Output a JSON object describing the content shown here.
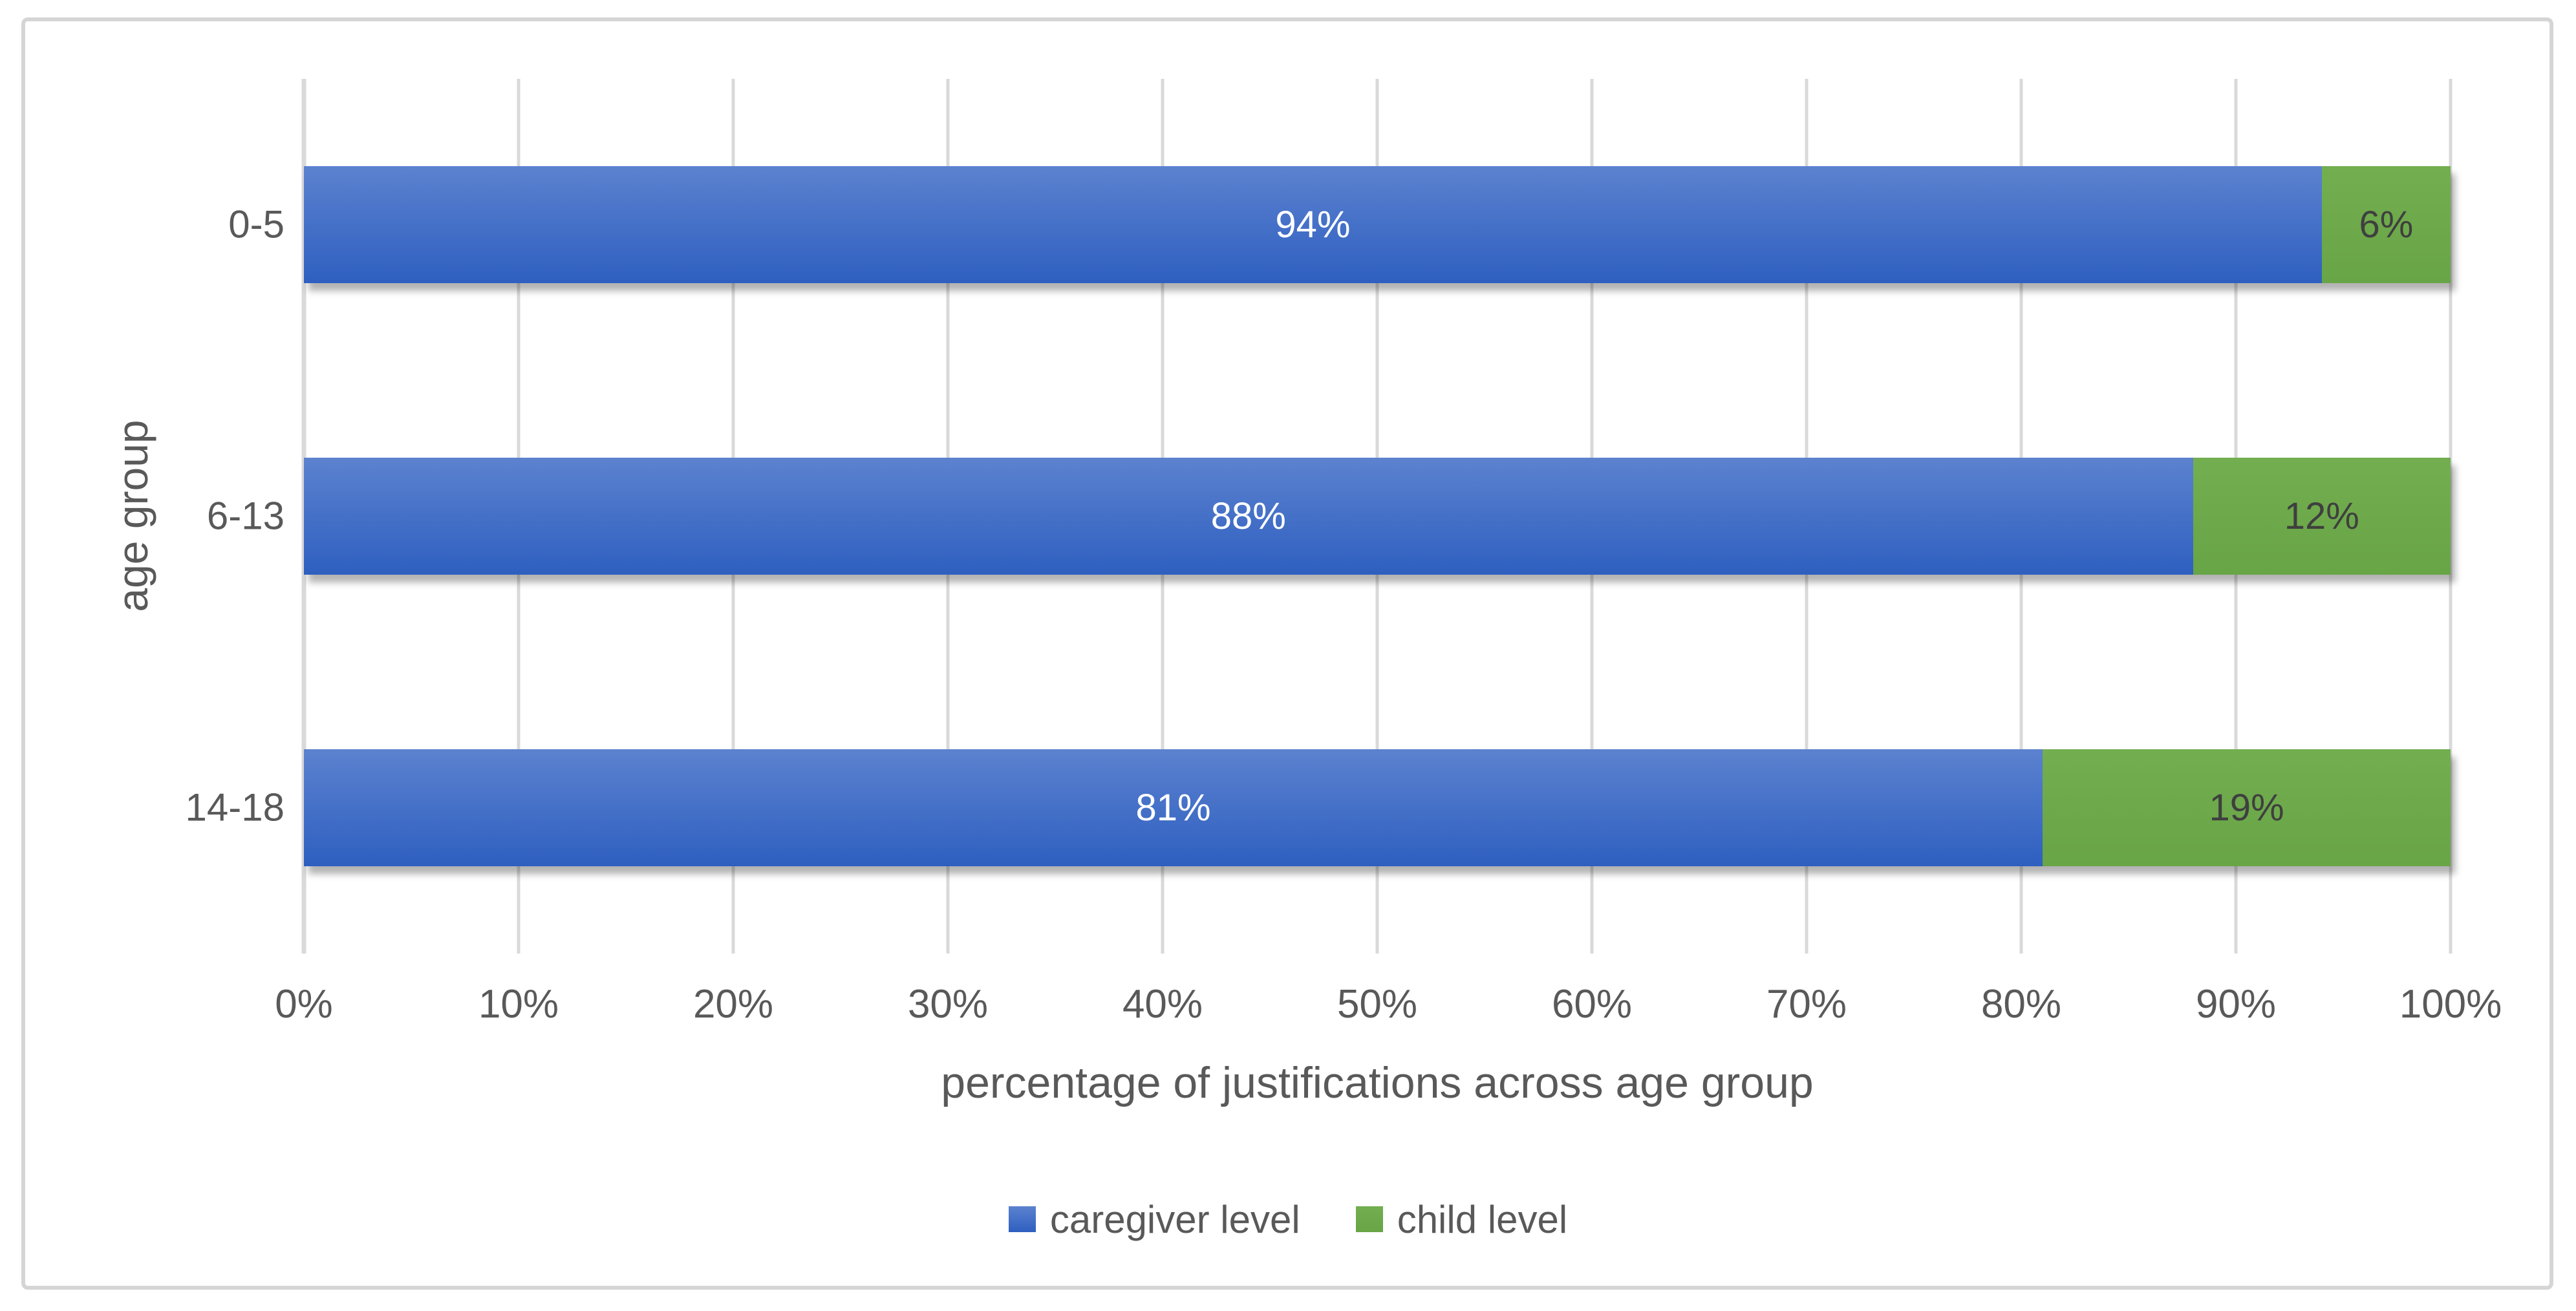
{
  "chart_data": {
    "type": "bar",
    "orientation": "horizontal",
    "stacked": true,
    "title": "",
    "xlabel": "percentage of justifications across age group",
    "ylabel": "age group",
    "categories": [
      "0-5",
      "6-13",
      "14-18"
    ],
    "series": [
      {
        "name": "caregiver level",
        "values": [
          94,
          88,
          81
        ],
        "labels": [
          "94%",
          "88%",
          "81%"
        ],
        "fill_top": "#5C82CF",
        "fill_bottom": "#2E5FC0",
        "label_color": "#FFFFFF"
      },
      {
        "name": "child level",
        "values": [
          6,
          12,
          19
        ],
        "labels": [
          "6%",
          "12%",
          "19%"
        ],
        "fill_top": "#73AE50",
        "fill_bottom": "#68A546",
        "label_color": "#3F3F3F"
      }
    ],
    "xlim": [
      0,
      100
    ],
    "x_ticks": [
      "0%",
      "10%",
      "20%",
      "30%",
      "40%",
      "50%",
      "60%",
      "70%",
      "80%",
      "90%",
      "100%"
    ],
    "grid": "vertical",
    "legend_position": "bottom"
  },
  "colors": {
    "axis_text": "#595959",
    "gridline": "#D9D9D9",
    "frame_border": "#D5D5D5",
    "background": "#FFFFFF"
  }
}
